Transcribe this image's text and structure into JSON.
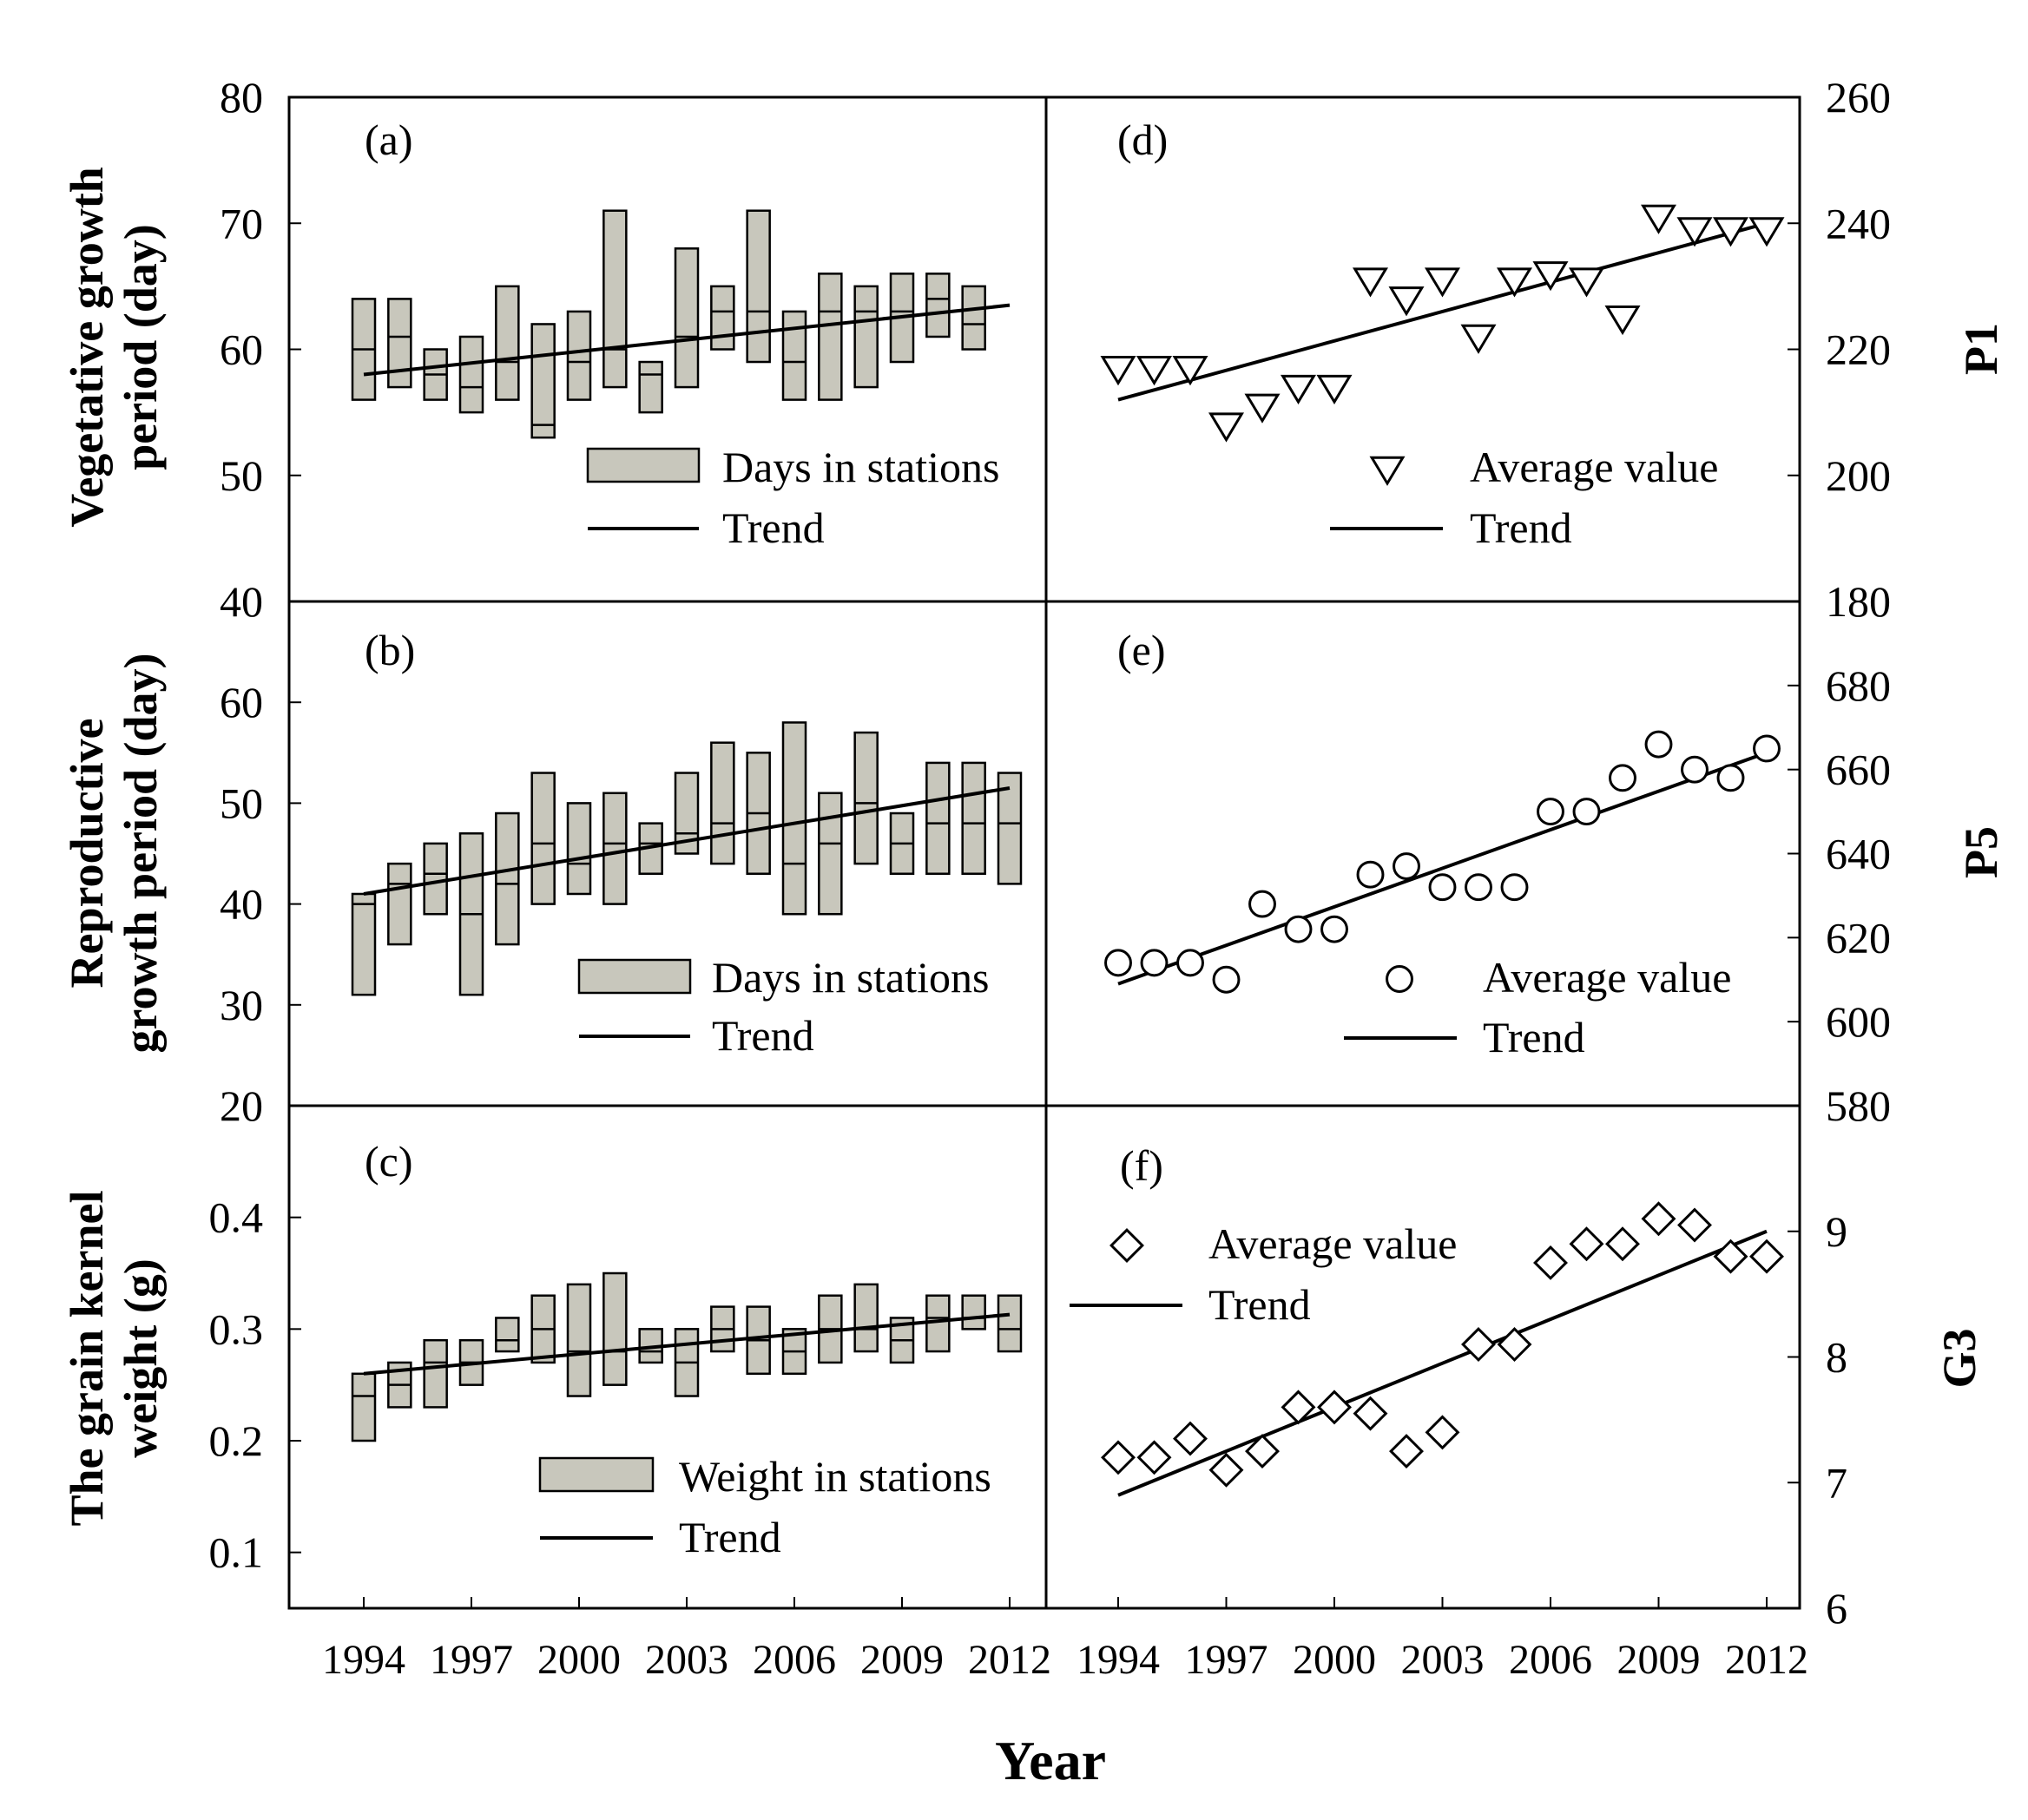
{
  "figure": {
    "x_axis_title": "Year",
    "x_tick_labels": [
      "1994",
      "1997",
      "2000",
      "2003",
      "2006",
      "2009",
      "2012"
    ]
  },
  "chart_data": [
    {
      "id": "a",
      "type": "floating_bar_with_trend",
      "panel_label": "(a)",
      "ylabel_lines": [
        "Vegetative growth",
        "period (day)"
      ],
      "ylim": [
        40,
        80
      ],
      "yticks": [
        "40",
        "50",
        "60",
        "70",
        "80"
      ],
      "legend": {
        "bar": "Days in stations",
        "line": "Trend"
      },
      "x": [
        1994,
        1995,
        1996,
        1997,
        1998,
        1999,
        2000,
        2001,
        2002,
        2003,
        2004,
        2005,
        2006,
        2007,
        2008,
        2009,
        2010,
        2011
      ],
      "min": [
        56,
        57,
        56,
        55,
        56,
        53,
        56,
        57,
        55,
        57,
        60,
        59,
        56,
        56,
        57,
        59,
        61,
        60
      ],
      "max": [
        64,
        64,
        60,
        61,
        65,
        62,
        63,
        71,
        59,
        68,
        65,
        71,
        63,
        66,
        65,
        66,
        66,
        65
      ],
      "mid": [
        60,
        61,
        58,
        57,
        59,
        54,
        59,
        60,
        58,
        61,
        63,
        63,
        59,
        63,
        63,
        63,
        64,
        62
      ],
      "trend": {
        "x": [
          1994,
          2012
        ],
        "y": [
          58.0,
          63.5
        ]
      }
    },
    {
      "id": "b",
      "type": "floating_bar_with_trend",
      "panel_label": "(b)",
      "ylabel_lines": [
        "Reproductive",
        "growth period (day)"
      ],
      "ylim": [
        20,
        70
      ],
      "yticks": [
        "20",
        "30",
        "40",
        "50",
        "60"
      ],
      "legend": {
        "bar": "Days in stations",
        "line": "Trend"
      },
      "x": [
        1994,
        1995,
        1996,
        1997,
        1998,
        1999,
        2000,
        2001,
        2002,
        2003,
        2004,
        2005,
        2006,
        2007,
        2008,
        2009,
        2010,
        2011,
        2012
      ],
      "min": [
        31,
        36,
        39,
        31,
        36,
        40,
        41,
        40,
        43,
        45,
        44,
        43,
        39,
        39,
        44,
        43,
        43,
        43,
        42
      ],
      "max": [
        41,
        44,
        46,
        47,
        49,
        53,
        50,
        51,
        48,
        53,
        56,
        55,
        58,
        51,
        57,
        49,
        54,
        54,
        53
      ],
      "mid": [
        40,
        42,
        43,
        39,
        42,
        46,
        44,
        46,
        46,
        47,
        48,
        49,
        44,
        46,
        50,
        46,
        48,
        48,
        48
      ],
      "trend": {
        "x": [
          1994,
          2012
        ],
        "y": [
          41.0,
          51.5
        ]
      }
    },
    {
      "id": "c",
      "type": "floating_bar_with_trend",
      "panel_label": "(c)",
      "ylabel_lines": [
        "The grain kernel",
        "weight (g)"
      ],
      "ylim": [
        0.05,
        0.5
      ],
      "yticks": [
        "0.1",
        "0.2",
        "0.3",
        "0.4"
      ],
      "legend": {
        "bar": "Weight in stations",
        "line": "Trend"
      },
      "x": [
        1994,
        1995,
        1996,
        1997,
        1998,
        1999,
        2000,
        2001,
        2002,
        2003,
        2004,
        2005,
        2006,
        2007,
        2008,
        2009,
        2010,
        2011,
        2012
      ],
      "min": [
        0.2,
        0.23,
        0.23,
        0.25,
        0.28,
        0.27,
        0.24,
        0.25,
        0.27,
        0.24,
        0.28,
        0.26,
        0.26,
        0.27,
        0.28,
        0.27,
        0.28,
        0.3,
        0.28
      ],
      "max": [
        0.26,
        0.27,
        0.29,
        0.29,
        0.31,
        0.33,
        0.34,
        0.35,
        0.3,
        0.3,
        0.32,
        0.32,
        0.3,
        0.33,
        0.34,
        0.31,
        0.33,
        0.33,
        0.33
      ],
      "mid": [
        0.24,
        0.25,
        0.27,
        0.27,
        0.29,
        0.3,
        0.28,
        0.28,
        0.28,
        0.27,
        0.3,
        0.29,
        0.28,
        0.3,
        0.3,
        0.29,
        0.31,
        0.31,
        0.3
      ],
      "trend": {
        "x": [
          1994,
          2012
        ],
        "y": [
          0.26,
          0.313
        ]
      }
    },
    {
      "id": "d",
      "type": "scatter_with_trend",
      "panel_label": "(d)",
      "marker": "triangle-down",
      "right_label": "P1",
      "ylim": [
        180,
        260
      ],
      "yticks": [
        "180",
        "200",
        "220",
        "240",
        "260"
      ],
      "legend": {
        "marker": "Average value",
        "line": "Trend"
      },
      "x": [
        1994,
        1995,
        1996,
        1997,
        1998,
        1999,
        2000,
        2001,
        2002,
        2003,
        2004,
        2005,
        2006,
        2007,
        2008,
        2009,
        2010,
        2011,
        2012
      ],
      "y": [
        217,
        217,
        217,
        208,
        211,
        214,
        214,
        231,
        228,
        231,
        222,
        231,
        232,
        231,
        225,
        241,
        239,
        239,
        239
      ],
      "trend": {
        "x": [
          1994,
          2012
        ],
        "y": [
          212,
          240
        ]
      }
    },
    {
      "id": "e",
      "type": "scatter_with_trend",
      "panel_label": "(e)",
      "marker": "circle",
      "right_label": "P5",
      "ylim": [
        580,
        700
      ],
      "yticks": [
        "580",
        "600",
        "620",
        "640",
        "660",
        "680"
      ],
      "legend": {
        "marker": "Average value",
        "line": "Trend"
      },
      "x": [
        1994,
        1995,
        1996,
        1997,
        1998,
        1999,
        2000,
        2001,
        2002,
        2003,
        2004,
        2005,
        2006,
        2007,
        2008,
        2009,
        2010,
        2011,
        2012
      ],
      "y": [
        614,
        614,
        614,
        610,
        628,
        622,
        622,
        635,
        637,
        632,
        632,
        632,
        650,
        650,
        658,
        666,
        660,
        658,
        665
      ],
      "trend": {
        "x": [
          1994,
          2012
        ],
        "y": [
          609,
          664
        ]
      }
    },
    {
      "id": "f",
      "type": "scatter_with_trend",
      "panel_label": "(f)",
      "marker": "diamond",
      "right_label": "G3",
      "ylim": [
        6,
        10
      ],
      "yticks": [
        "6",
        "7",
        "8",
        "9"
      ],
      "legend": {
        "marker": "Average value",
        "line": "Trend"
      },
      "x": [
        1994,
        1995,
        1996,
        1997,
        1998,
        1999,
        2000,
        2001,
        2002,
        2003,
        2004,
        2005,
        2006,
        2007,
        2008,
        2009,
        2010,
        2011,
        2012
      ],
      "y": [
        7.2,
        7.2,
        7.35,
        7.1,
        7.25,
        7.6,
        7.6,
        7.55,
        7.25,
        7.4,
        8.1,
        8.1,
        8.75,
        8.9,
        8.9,
        9.1,
        9.05,
        8.8,
        8.8
      ],
      "trend": {
        "x": [
          1994,
          2012
        ],
        "y": [
          6.9,
          9.0
        ]
      }
    }
  ]
}
